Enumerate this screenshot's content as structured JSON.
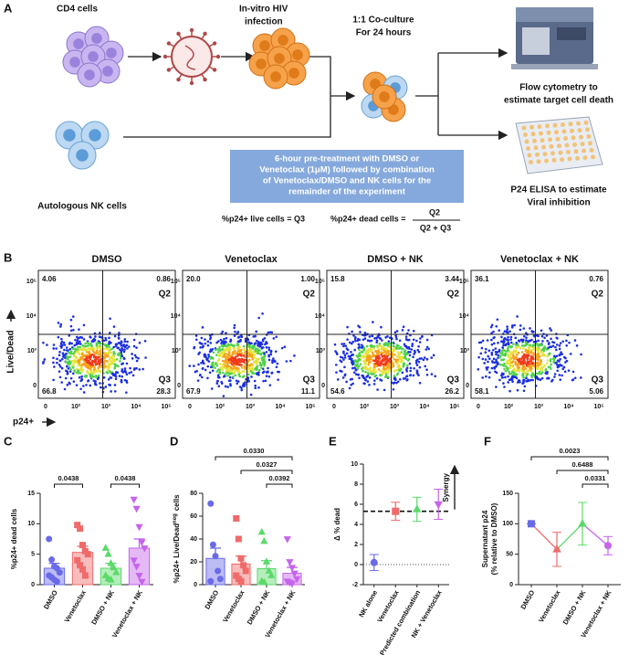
{
  "panel_a": {
    "letter": "A",
    "cd4_label": "CD4 cells",
    "virus_label": [
      "In-vitro HIV",
      "infection"
    ],
    "coculture_label": [
      "1:1 Co-culture",
      "For 24 hours"
    ],
    "flow_label": [
      "Flow cytometry to",
      "estimate target cell death"
    ],
    "nk_label": "Autologous NK cells",
    "box_text": [
      "6-hour pre-treatment with DMSO or",
      "Venetoclax (1μM) followed by combination",
      "of Venetoclax/DMSO and NK cells for the",
      "remainder of the experiment"
    ],
    "elisa_label": [
      "P24 ELISA to estimate",
      "Viral inhibition"
    ],
    "live_formula": "%p24+ live cells = Q3",
    "dead_formula": "%p24+ dead cells =",
    "numerator": "Q2",
    "denominator": "Q2 + Q3"
  },
  "panel_b": {
    "letter": "B",
    "y_label": "Live/Dead",
    "x_label": "p24+",
    "y_ticks": [
      "10⁵",
      "10⁴",
      "10³",
      "0"
    ],
    "x_ticks": [
      "0",
      "10²",
      "10³",
      "10⁴",
      "10⁵"
    ],
    "q2_label": "Q2",
    "q3_label": "Q3",
    "plots": [
      {
        "title": "DMSO",
        "q1": "4.06",
        "q2": "0.86",
        "q3": "28.3",
        "q4": "66.8"
      },
      {
        "title": "Venetoclax",
        "q1": "20.0",
        "q2": "1.00",
        "q3": "11.1",
        "q4": "67.9"
      },
      {
        "title": "DMSO + NK",
        "q1": "15.8",
        "q2": "3.44",
        "q3": "26.2",
        "q4": "54.6"
      },
      {
        "title": "Venetoclax + NK",
        "q1": "36.1",
        "q2": "0.76",
        "q3": "5.06",
        "q4": "58.1"
      }
    ]
  },
  "chart_data": [
    {
      "type": "bar",
      "letter": "C",
      "ylabel": "%p24+ dead cells",
      "categories": [
        "DMSO",
        "Venetoclax",
        "DMSO + NK",
        "Venetoclax + NK"
      ],
      "colors": [
        "#6a6ae8",
        "#f06a6a",
        "#5cd96a",
        "#c664ec"
      ],
      "values": [
        2.7,
        5.3,
        2.7,
        6.0
      ],
      "errors": [
        0.8,
        1.0,
        0.8,
        1.5
      ],
      "points": [
        [
          7.5,
          4.1,
          3.0,
          2.7,
          2.0,
          1.5,
          1.2,
          0.8,
          0.5
        ],
        [
          9.8,
          9.2,
          6.5,
          5.5,
          5.0,
          4.0,
          3.2,
          2.5,
          1.5
        ],
        [
          6.0,
          5.0,
          3.5,
          2.8,
          2.0,
          1.5,
          1.0,
          0.8
        ],
        [
          14.0,
          12.5,
          9.5,
          7.0,
          6.0,
          4.0,
          3.0,
          1.5,
          0.5
        ]
      ],
      "ylim": [
        0,
        15
      ],
      "yticks": [
        0,
        5,
        10,
        15
      ],
      "p_values": [
        "0.0438",
        "0.0438"
      ]
    },
    {
      "type": "bar",
      "letter": "D",
      "ylabel": "%p24+ Live/Dead",
      "ylabel_sup": "neg",
      "ylabel_end": "cells",
      "categories": [
        "DMSO",
        "Venetoclax",
        "DMSO + NK",
        "Venetoclax + NK"
      ],
      "colors": [
        "#6a6ae8",
        "#f06a6a",
        "#5cd96a",
        "#c664ec"
      ],
      "values": [
        23,
        18,
        14,
        10
      ],
      "errors": [
        9,
        7,
        7,
        5
      ],
      "points": [
        [
          71,
          35,
          25,
          12,
          5,
          3
        ],
        [
          58,
          40,
          23,
          17,
          12,
          8,
          5,
          3
        ],
        [
          46,
          38,
          20,
          12,
          8,
          3,
          2
        ],
        [
          40,
          20,
          15,
          10,
          5,
          3,
          2,
          1
        ]
      ],
      "ylim": [
        0,
        80
      ],
      "yticks": [
        0,
        20,
        40,
        60,
        80
      ],
      "p_values": [
        "0.0330",
        "0.0327",
        "0.0392"
      ]
    },
    {
      "type": "dot",
      "letter": "E",
      "ylabel": "Δ % dead",
      "categories": [
        "NK alone",
        "Venetoclax",
        "Predicted combination",
        "NK + Venetoclax"
      ],
      "colors": [
        "#6a6ae8",
        "#f06a6a",
        "#5cd96a",
        "#c664ec"
      ],
      "values": [
        0.2,
        5.3,
        5.5,
        6.0
      ],
      "errors": [
        0.8,
        0.9,
        1.2,
        1.5
      ],
      "ylim": [
        -2,
        10
      ],
      "yticks": [
        -2,
        0,
        2,
        4,
        6,
        8,
        10
      ],
      "reference_line": 5.3,
      "baseline": 0,
      "annotation": "Synergy"
    },
    {
      "type": "line",
      "letter": "F",
      "ylabel": [
        "Supernatant p24",
        "(% relative to DMSO)"
      ],
      "categories": [
        "DMSO",
        "Venetoclax",
        "DMSO + NK",
        "Venetoclax + NK"
      ],
      "colors": [
        "#6a6ae8",
        "#f06a6a",
        "#5cd96a",
        "#c664ec"
      ],
      "values": [
        100,
        58,
        100,
        64
      ],
      "errors": [
        0,
        28,
        35,
        15
      ],
      "ylim": [
        0,
        150
      ],
      "yticks": [
        0,
        50,
        100,
        150
      ],
      "p_values": [
        "0.0023",
        "0.6488",
        "0.0331"
      ]
    }
  ]
}
